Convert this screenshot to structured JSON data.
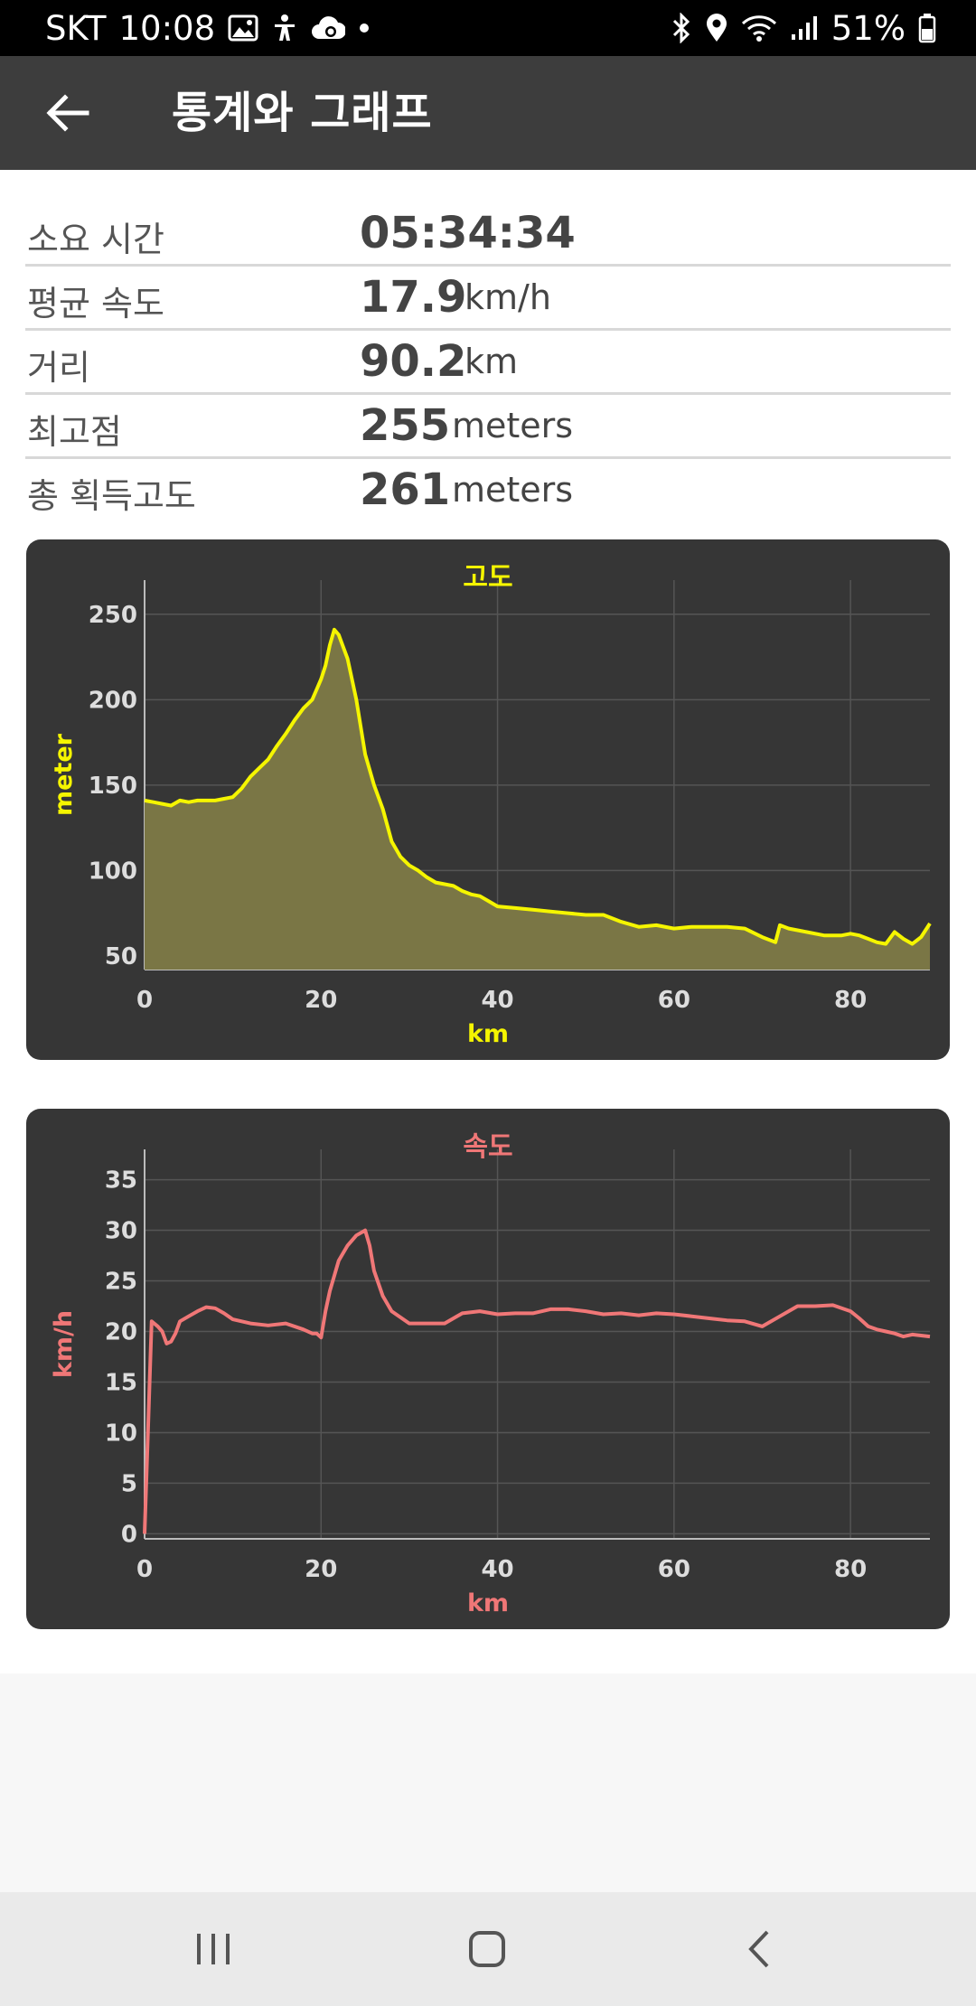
{
  "status_bar": {
    "carrier": "SKT",
    "time": "10:08",
    "battery": "51%",
    "icons_left": [
      "gallery-icon",
      "accessibility-icon",
      "cloud-sync-icon",
      "dot-icon"
    ],
    "icons_right": [
      "bluetooth-icon",
      "location-icon",
      "wifi-icon",
      "signal-icon",
      "battery-icon"
    ]
  },
  "app_bar": {
    "title": "통계와 그래프",
    "back_icon": "back-arrow-icon"
  },
  "stats": [
    {
      "label": "소요 시간",
      "value": "05:34:34",
      "unit": ""
    },
    {
      "label": "평균 속도",
      "value": "17.9",
      "unit": "km/h"
    },
    {
      "label": "거리",
      "value": "90.2",
      "unit": "km"
    },
    {
      "label": "최고점",
      "value": "255",
      "unit": "meters"
    },
    {
      "label": "총 획득고도",
      "value": "261",
      "unit": "meters"
    }
  ],
  "chart_data": [
    {
      "type": "area",
      "title": "고도",
      "xlabel": "km",
      "ylabel": "meter",
      "color": "#f5f500",
      "fill": "#7a7645",
      "xlim": [
        0,
        89
      ],
      "ylim": [
        42,
        270
      ],
      "xticks": [
        0,
        20,
        40,
        60,
        80
      ],
      "yticks": [
        50,
        100,
        150,
        200,
        250
      ],
      "grid": true,
      "x": [
        0,
        1,
        2,
        3,
        4,
        5,
        6,
        7,
        8,
        9,
        10,
        11,
        12,
        13,
        14,
        15,
        16,
        17,
        18,
        19,
        19.5,
        20,
        20.5,
        21,
        21.5,
        22,
        23,
        24,
        25,
        26,
        27,
        28,
        29,
        30,
        31,
        32,
        33,
        34,
        35,
        36,
        37,
        38,
        39,
        40,
        42,
        44,
        46,
        48,
        50,
        52,
        54,
        56,
        58,
        60,
        62,
        64,
        66,
        68,
        70,
        71,
        71.5,
        72,
        73,
        75,
        77,
        79,
        80,
        81,
        82,
        83,
        84,
        85,
        86,
        87,
        88,
        89
      ],
      "y": [
        141,
        140,
        139,
        138,
        141,
        140,
        141,
        141,
        141,
        142,
        143,
        148,
        155,
        160,
        165,
        173,
        180,
        188,
        195,
        200,
        206,
        212,
        220,
        232,
        241,
        238,
        224,
        200,
        168,
        150,
        136,
        117,
        108,
        103,
        100,
        96,
        93,
        92,
        91,
        88,
        86,
        85,
        82,
        79,
        78,
        77,
        76,
        75,
        74,
        74,
        70,
        67,
        68,
        66,
        67,
        67,
        67,
        66,
        61,
        59,
        58,
        68,
        66,
        64,
        62,
        62,
        63,
        62,
        60,
        58,
        57,
        64,
        60,
        57,
        61,
        69
      ]
    },
    {
      "type": "line",
      "title": "속도",
      "xlabel": "km",
      "ylabel": "km/h",
      "color": "#f07777",
      "xlim": [
        0,
        89
      ],
      "ylim": [
        -0.5,
        38
      ],
      "xticks": [
        0,
        20,
        40,
        60,
        80
      ],
      "yticks": [
        0,
        5,
        10,
        15,
        20,
        25,
        30,
        35
      ],
      "grid": true,
      "x": [
        0,
        0.8,
        1.5,
        2,
        2.5,
        3,
        3.5,
        4,
        5,
        6,
        7,
        8,
        9,
        10,
        12,
        14,
        16,
        18,
        19,
        19.5,
        20,
        20.5,
        21,
        21.5,
        22,
        23,
        24,
        25,
        25.5,
        26,
        27,
        28,
        30,
        32,
        34,
        36,
        38,
        40,
        42,
        44,
        46,
        48,
        50,
        52,
        54,
        56,
        58,
        60,
        62,
        64,
        66,
        68,
        70,
        72,
        74,
        76,
        78,
        80,
        81,
        82,
        83,
        84,
        85,
        86,
        87,
        88,
        89
      ],
      "y": [
        0,
        21,
        20.5,
        20,
        18.8,
        19,
        19.8,
        21,
        21.5,
        22,
        22.4,
        22.3,
        21.8,
        21.2,
        20.8,
        20.6,
        20.8,
        20.2,
        19.8,
        19.8,
        19.4,
        22,
        24,
        25.5,
        27,
        28.5,
        29.5,
        30,
        28.5,
        26,
        23.5,
        22,
        20.8,
        20.8,
        20.8,
        21.8,
        22,
        21.7,
        21.8,
        21.8,
        22.2,
        22.2,
        22,
        21.7,
        21.8,
        21.6,
        21.8,
        21.7,
        21.5,
        21.3,
        21.1,
        21,
        20.5,
        21.5,
        22.5,
        22.5,
        22.6,
        22,
        21.3,
        20.5,
        20.2,
        20,
        19.8,
        19.5,
        19.7,
        19.6,
        19.5
      ]
    }
  ]
}
